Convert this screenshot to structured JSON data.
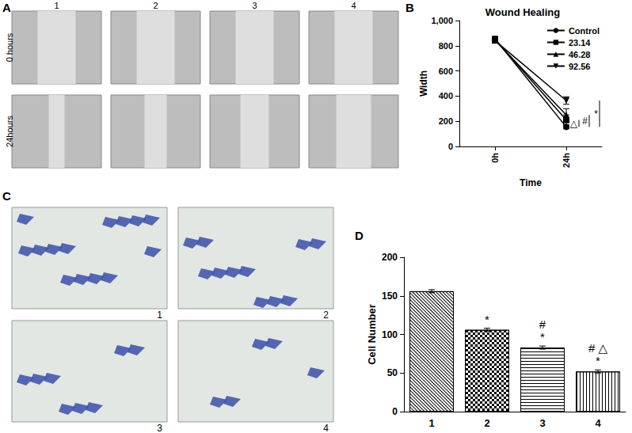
{
  "panels": {
    "A": {
      "label": "A",
      "columns": [
        "1",
        "2",
        "3",
        "4"
      ],
      "rows": [
        "0 hours",
        "24hours"
      ]
    },
    "C": {
      "label": "C",
      "images": [
        "1",
        "2",
        "3",
        "4"
      ]
    }
  },
  "chart_data": [
    {
      "panel": "B",
      "type": "line",
      "title": "Wound Healing",
      "x_label": "Time",
      "y_label": "Width",
      "categories": [
        "0h",
        "24h"
      ],
      "ylim": [
        0,
        1000
      ],
      "yticks": [
        0,
        200,
        400,
        600,
        800,
        1000
      ],
      "grid": false,
      "legend": "upper right",
      "series": [
        {
          "name": "Control",
          "color": "#000000",
          "marker": "circle",
          "values": [
            855,
            155
          ],
          "errors": [
            20,
            15
          ]
        },
        {
          "name": "23.14",
          "color": "#000000",
          "marker": "square",
          "values": [
            850,
            210
          ],
          "errors": [
            20,
            40
          ]
        },
        {
          "name": "46.28",
          "color": "#000000",
          "marker": "triangle",
          "values": [
            845,
            250
          ],
          "errors": [
            20,
            50
          ]
        },
        {
          "name": "92.56",
          "color": "#000000",
          "marker": "triangle_down",
          "values": [
            840,
            365
          ],
          "errors": [
            20,
            30
          ]
        }
      ],
      "brackets": [
        {
          "label": "△",
          "series": [
            "Control",
            "23.14"
          ]
        },
        {
          "label": "#",
          "series": [
            "Control",
            "46.28"
          ]
        },
        {
          "label": "*",
          "series": [
            "Control",
            "92.56"
          ]
        }
      ]
    },
    {
      "panel": "D",
      "type": "bar",
      "y_label": "Cell Number",
      "categories": [
        "1",
        "2",
        "3",
        "4"
      ],
      "values": [
        156,
        106,
        83,
        52
      ],
      "errors": [
        2,
        2,
        2,
        2
      ],
      "color": "#000000",
      "ylim": [
        0,
        200
      ],
      "yticks": [
        0,
        50,
        100,
        150,
        200
      ],
      "grid": false,
      "annotations": [
        [],
        [
          "*"
        ],
        [
          "#",
          "*"
        ],
        [
          "# △",
          "*"
        ]
      ]
    }
  ]
}
